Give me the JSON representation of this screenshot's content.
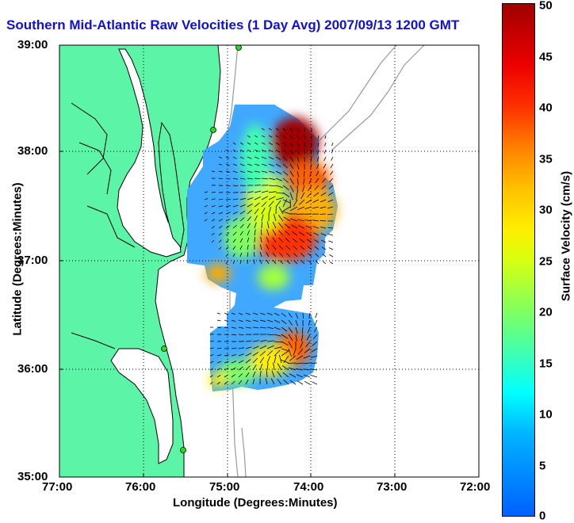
{
  "title": "Southern Mid-Atlantic Raw Velocities (1 Day Avg) 2007/09/13 1200 GMT",
  "axes": {
    "xlabel": "Longitude (Degrees:Minutes)",
    "ylabel": "Latitude (Degrees:Minutes)",
    "xticks": [
      "77:00",
      "76:00",
      "75:00",
      "74:00",
      "73:00",
      "72:00"
    ],
    "yticks": [
      "39:00",
      "38:00",
      "37:00",
      "36:00",
      "35:00"
    ]
  },
  "colorbar": {
    "label": "Surface Velocity (cm/s)",
    "ticks": [
      "50",
      "45",
      "40",
      "35",
      "30",
      "25",
      "20",
      "15",
      "10",
      "5",
      "0"
    ],
    "range": [
      0,
      50
    ]
  },
  "colors": {
    "land": "#5cf5a8",
    "coast": "#000000",
    "bathymetry": "#999999",
    "stations": "#22dd22",
    "title": "#1010d8"
  }
}
